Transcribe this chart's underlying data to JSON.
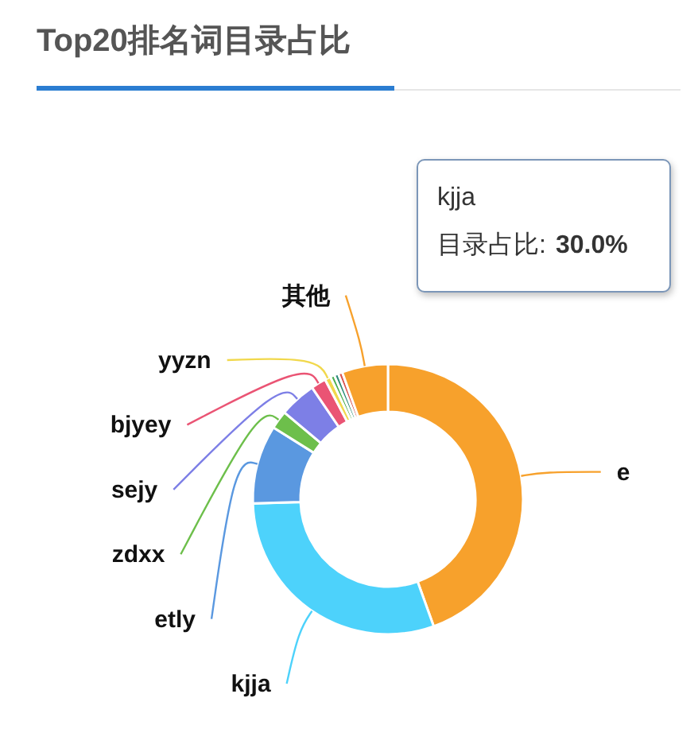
{
  "chart_data": {
    "type": "donut",
    "title": "Top20排名词目录占比",
    "categories": [
      "e",
      "kjja",
      "etly",
      "zdxx",
      "sejy",
      "bjyey",
      "yyzn",
      null,
      null,
      null,
      "其他"
    ],
    "values": [
      44.5,
      30.0,
      9.4,
      2.2,
      4.4,
      1.8,
      0.7,
      0.5,
      0.5,
      0.5,
      5.5
    ],
    "colors": [
      "#f7a12c",
      "#4dd2fb",
      "#5a98e0",
      "#6dbf4b",
      "#7d7fe6",
      "#ea5474",
      "#f1d84c",
      "#4caf50",
      "#2e8b7a",
      "#d9534f",
      "#f7a12c"
    ],
    "annotations": [
      "kjja",
      "目录占比:",
      "30.0%"
    ]
  }
}
